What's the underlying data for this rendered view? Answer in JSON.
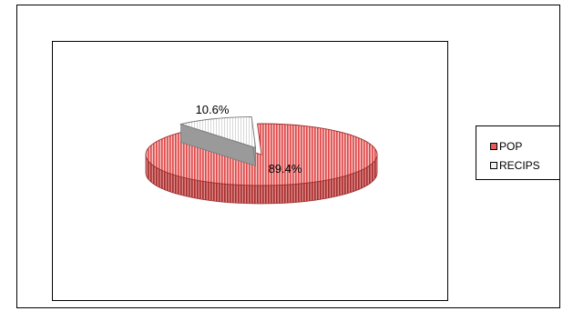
{
  "chart_data": {
    "type": "pie",
    "categories": [
      "POP",
      "RECIPS"
    ],
    "values": [
      89.4,
      10.6
    ],
    "data_labels": [
      "89.4%",
      "10.6%"
    ],
    "legend": [
      "POP",
      "RECIPS"
    ],
    "legend_position": "right",
    "style": "3d-exploded",
    "colors": {
      "POP": "#ea5a5a",
      "POP_dark": "#9c3030",
      "RECIPS": "#f2f2f2",
      "RECIPS_dark": "#7a7a7a"
    }
  }
}
